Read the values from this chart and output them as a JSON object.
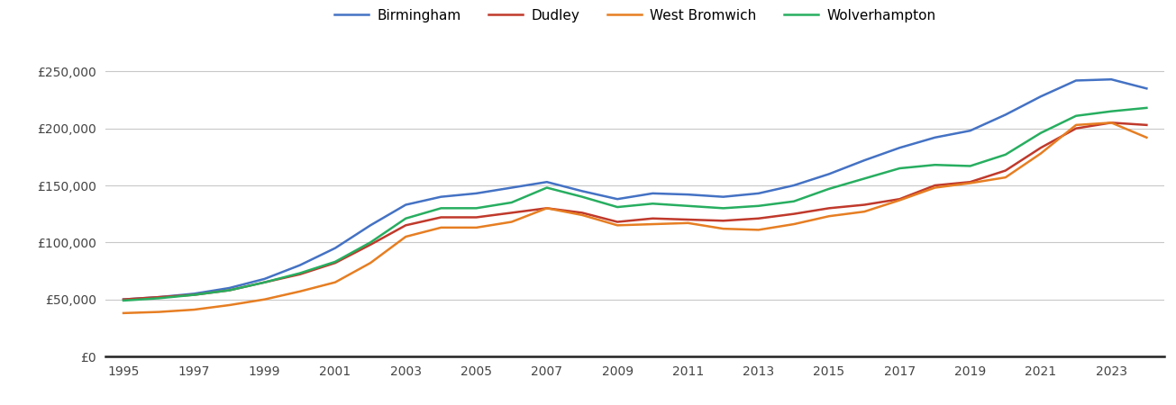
{
  "years": [
    1995,
    1996,
    1997,
    1998,
    1999,
    2000,
    2001,
    2002,
    2003,
    2004,
    2005,
    2006,
    2007,
    2008,
    2009,
    2010,
    2011,
    2012,
    2013,
    2014,
    2015,
    2016,
    2017,
    2018,
    2019,
    2020,
    2021,
    2022,
    2023,
    2024
  ],
  "Birmingham": [
    50000,
    52000,
    55000,
    60000,
    68000,
    80000,
    95000,
    115000,
    133000,
    140000,
    143000,
    148000,
    153000,
    145000,
    138000,
    143000,
    142000,
    140000,
    143000,
    150000,
    160000,
    172000,
    183000,
    192000,
    198000,
    212000,
    228000,
    242000,
    243000,
    235000
  ],
  "Dudley": [
    50000,
    52000,
    54000,
    58000,
    65000,
    72000,
    82000,
    98000,
    115000,
    122000,
    122000,
    126000,
    130000,
    126000,
    118000,
    121000,
    120000,
    119000,
    121000,
    125000,
    130000,
    133000,
    138000,
    150000,
    153000,
    163000,
    183000,
    200000,
    205000,
    203000
  ],
  "West Bromwich": [
    38000,
    39000,
    41000,
    45000,
    50000,
    57000,
    65000,
    82000,
    105000,
    113000,
    113000,
    118000,
    130000,
    124000,
    115000,
    116000,
    117000,
    112000,
    111000,
    116000,
    123000,
    127000,
    137000,
    148000,
    152000,
    157000,
    178000,
    203000,
    205000,
    192000
  ],
  "Wolverhampton": [
    49000,
    51000,
    54000,
    58000,
    65000,
    73000,
    83000,
    100000,
    121000,
    130000,
    130000,
    135000,
    148000,
    140000,
    131000,
    134000,
    132000,
    130000,
    132000,
    136000,
    147000,
    156000,
    165000,
    168000,
    167000,
    177000,
    196000,
    211000,
    215000,
    218000
  ],
  "colors": {
    "Birmingham": "#4472C4",
    "Dudley": "#C0392B",
    "West Bromwich": "#E67E22",
    "Wolverhampton": "#27AE60"
  },
  "yticks": [
    0,
    50000,
    100000,
    150000,
    200000,
    250000
  ],
  "ylim": [
    0,
    270000
  ],
  "background_color": "#ffffff",
  "grid_color": "#c8c8c8"
}
